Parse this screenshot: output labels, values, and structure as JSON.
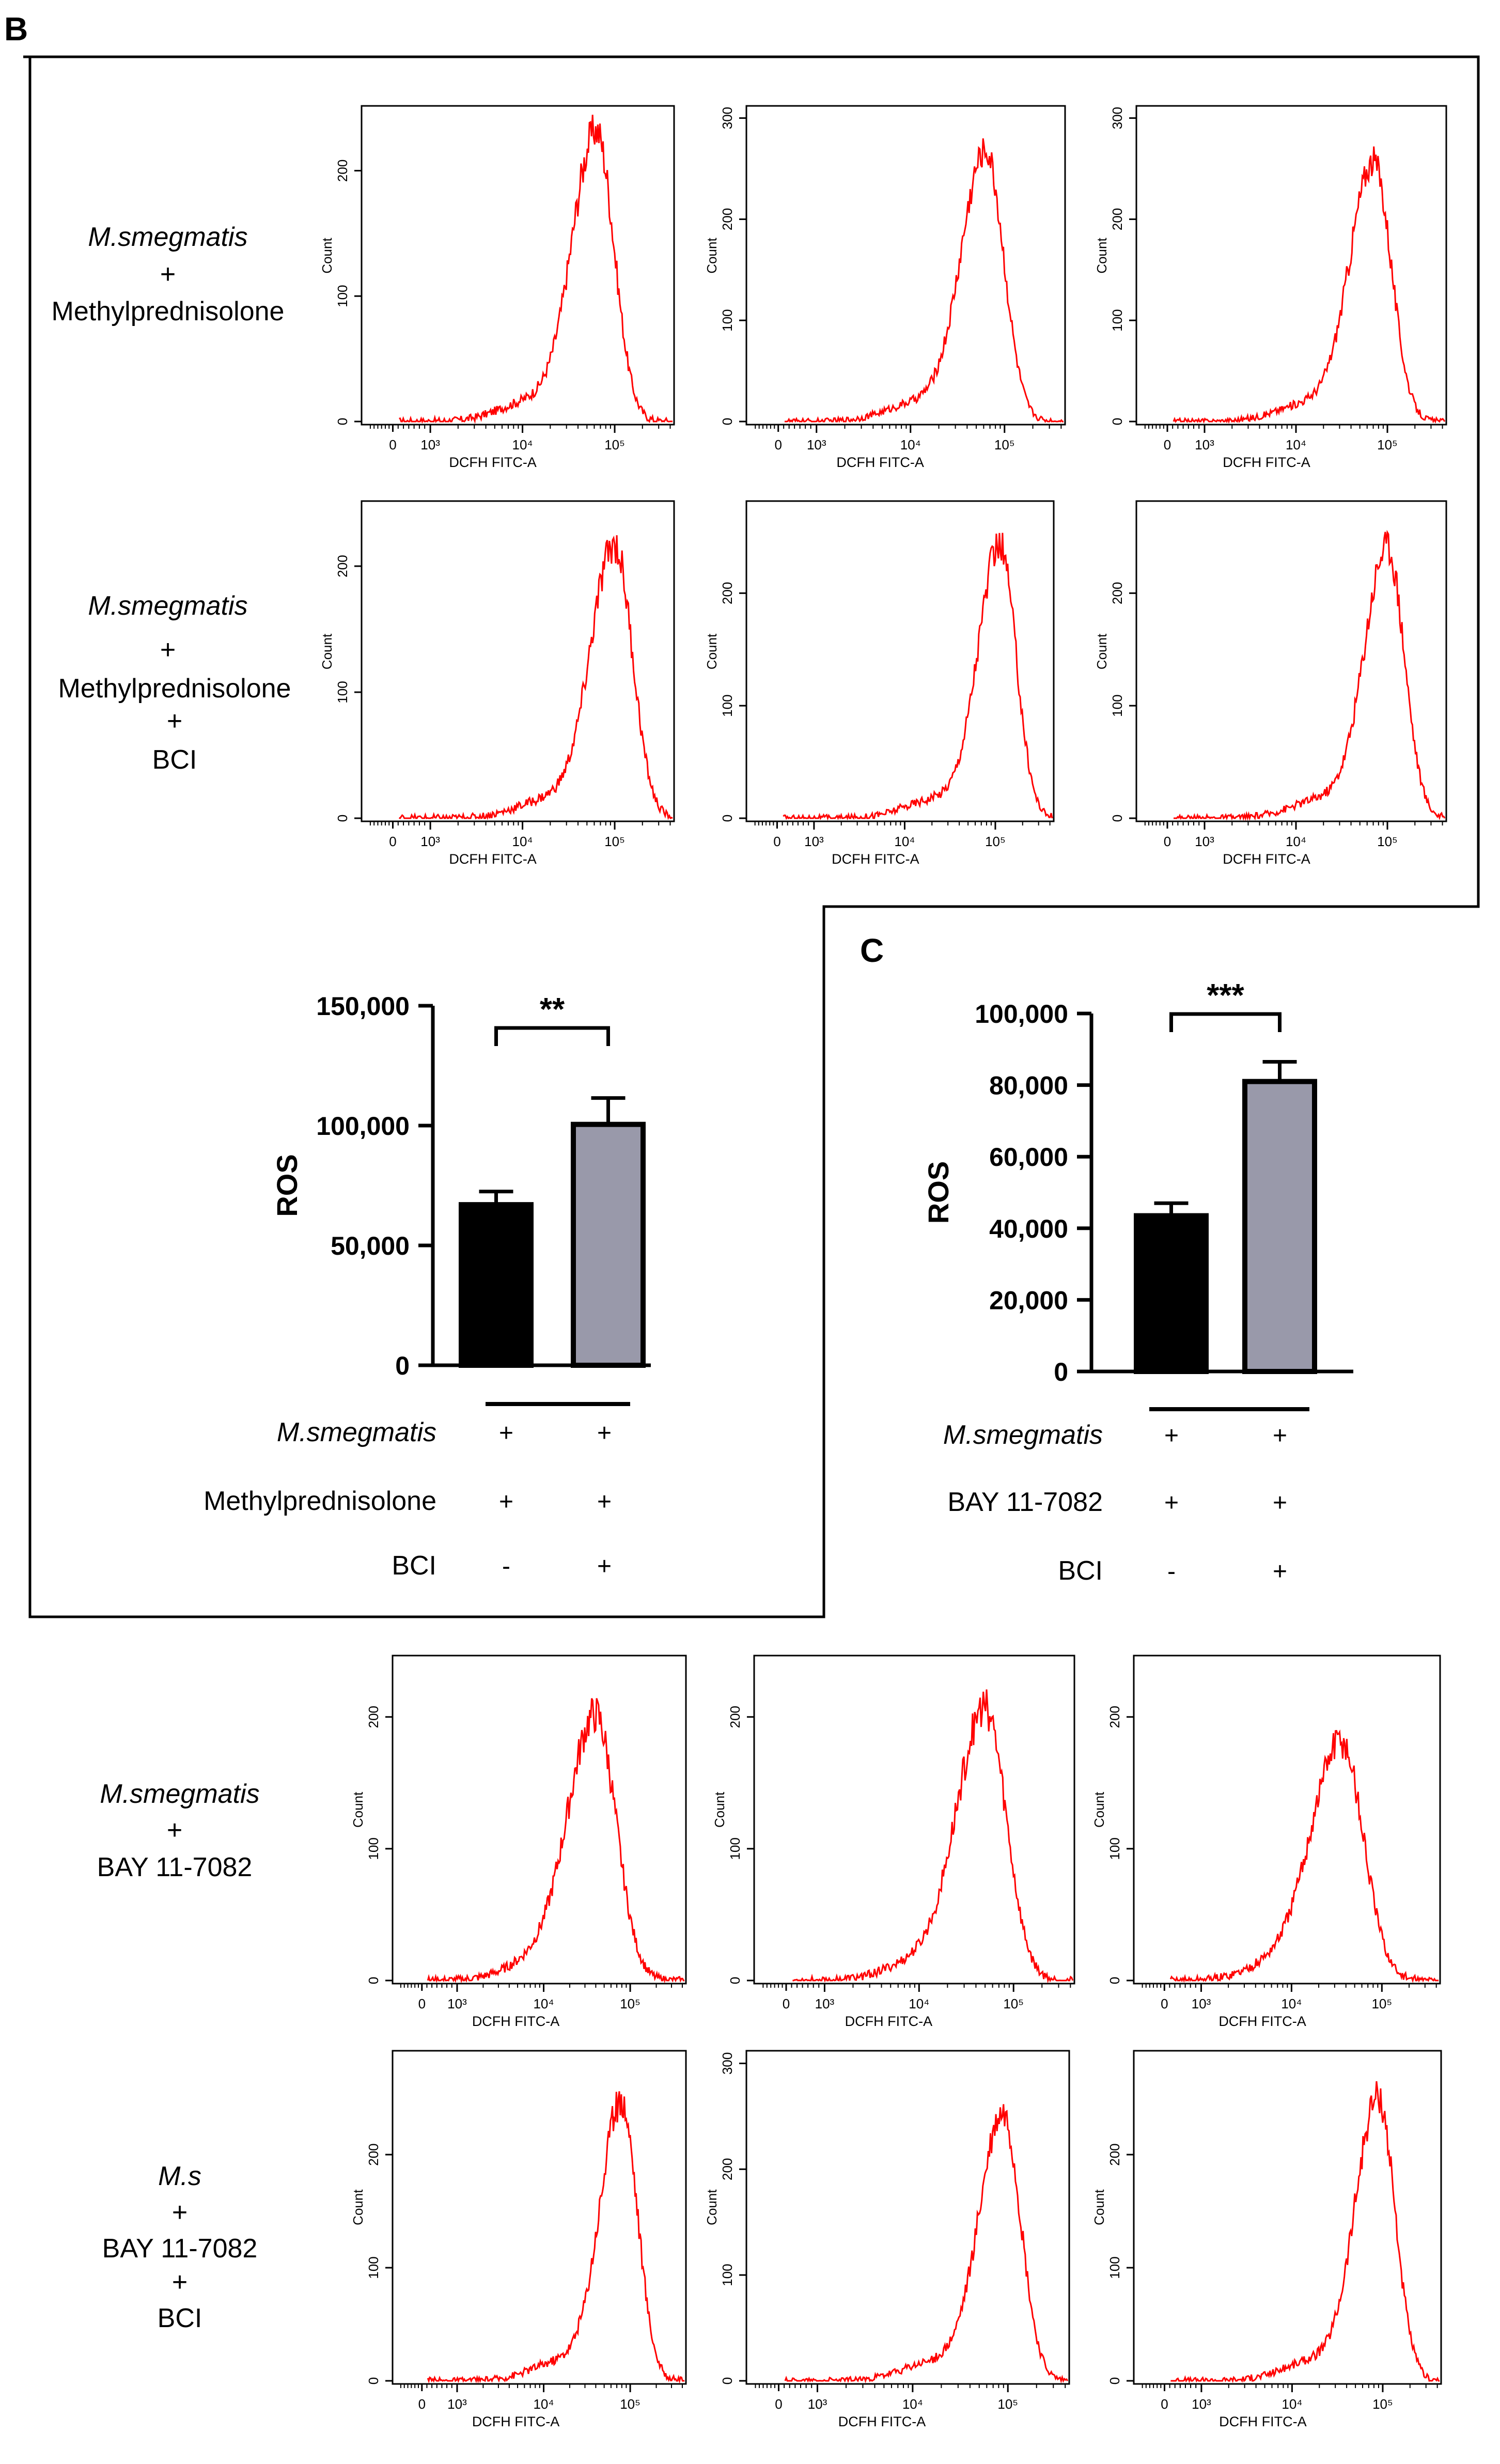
{
  "panels": {
    "B": "B",
    "C": "C"
  },
  "conditions": {
    "b_row1": {
      "line1": "M.smegmatis",
      "line2": "+",
      "line3": "Methylprednisolone"
    },
    "b_row2": {
      "line1": "M.smegmatis",
      "line2": "+",
      "line3": "Methylprednisolone",
      "line4": "+",
      "line5": "BCI"
    },
    "c_row1": {
      "line1": "M.smegmatis",
      "line2": "+",
      "line3": "BAY 11-7082"
    },
    "c_row2": {
      "line1": "M.s",
      "line2": "+",
      "line3": "BAY 11-7082",
      "line4": "+",
      "line5": "BCI"
    }
  },
  "colors": {
    "histogram_line": "#ff0000",
    "bar_control": "#000000",
    "bar_treated": "#9999aa",
    "axis": "#000000"
  },
  "chart_data": [
    {
      "type": "bar",
      "panel": "B",
      "categories": [
        "",
        ""
      ],
      "values": [
        67000,
        100500
      ],
      "errors": [
        5500,
        11000
      ],
      "bar_colors": [
        "#000000",
        "#9999aa"
      ],
      "ylabel": "ROS",
      "ylim": [
        0,
        150000
      ],
      "yticks": [
        "0",
        "50,000",
        "100,000",
        "150,000"
      ],
      "significance": "**",
      "treatment_table": [
        {
          "label": "M.smegmatis",
          "italic": true,
          "values": [
            "+",
            "+"
          ]
        },
        {
          "label": "Methylprednisolone",
          "italic": false,
          "values": [
            "+",
            "+"
          ]
        },
        {
          "label": "BCI",
          "italic": false,
          "values": [
            "-",
            "+"
          ]
        }
      ]
    },
    {
      "type": "bar",
      "panel": "C",
      "categories": [
        "",
        ""
      ],
      "values": [
        43500,
        81000
      ],
      "errors": [
        3500,
        5500
      ],
      "bar_colors": [
        "#000000",
        "#9999aa"
      ],
      "ylabel": "ROS",
      "ylim": [
        0,
        100000
      ],
      "yticks": [
        "0",
        "20,000",
        "40,000",
        "60,000",
        "80,000",
        "100,000"
      ],
      "significance": "***",
      "treatment_table": [
        {
          "label": "M.smegmatis",
          "italic": true,
          "values": [
            "+",
            "+"
          ]
        },
        {
          "label": "BAY 11-7082",
          "italic": false,
          "values": [
            "+",
            "+"
          ]
        },
        {
          "label": "BCI",
          "italic": false,
          "values": [
            "-",
            "+"
          ]
        }
      ]
    },
    {
      "type": "line",
      "subtype": "flow-cytometry-histograms",
      "xlabel": "DCFH FITC-A",
      "ylabel": "Count",
      "x_scale": "biexponential",
      "x_ticks": [
        "0",
        "10³",
        "10⁴",
        "10⁵"
      ],
      "histograms": [
        {
          "group": "b_row1",
          "replicate": 1,
          "peak_log10": 4.8,
          "peak_count": 230,
          "width": 0.26,
          "ymax": 250,
          "yticks": [
            0,
            100,
            200
          ]
        },
        {
          "group": "b_row1",
          "replicate": 2,
          "peak_log10": 4.8,
          "peak_count": 265,
          "width": 0.26,
          "ymax": 310,
          "yticks": [
            0,
            100,
            200,
            300
          ]
        },
        {
          "group": "b_row1",
          "replicate": 3,
          "peak_log10": 4.85,
          "peak_count": 255,
          "width": 0.26,
          "ymax": 310,
          "yticks": [
            0,
            100,
            200,
            300
          ]
        },
        {
          "group": "b_row2",
          "replicate": 1,
          "peak_log10": 5.0,
          "peak_count": 215,
          "width": 0.26,
          "ymax": 250,
          "yticks": [
            0,
            100,
            200
          ]
        },
        {
          "group": "b_row2",
          "replicate": 2,
          "peak_log10": 5.05,
          "peak_count": 240,
          "width": 0.24,
          "ymax": 280,
          "yticks": [
            0,
            100,
            200
          ]
        },
        {
          "group": "b_row2",
          "replicate": 3,
          "peak_log10": 5.0,
          "peak_count": 240,
          "width": 0.25,
          "ymax": 280,
          "yticks": [
            0,
            100,
            200
          ]
        },
        {
          "group": "c_row1",
          "replicate": 1,
          "peak_log10": 4.6,
          "peak_count": 200,
          "width": 0.32,
          "ymax": 245,
          "yticks": [
            0,
            100,
            200
          ]
        },
        {
          "group": "c_row1",
          "replicate": 2,
          "peak_log10": 4.7,
          "peak_count": 205,
          "width": 0.3,
          "ymax": 245,
          "yticks": [
            0,
            100,
            200
          ]
        },
        {
          "group": "c_row1",
          "replicate": 3,
          "peak_log10": 4.55,
          "peak_count": 180,
          "width": 0.33,
          "ymax": 245,
          "yticks": [
            0,
            100,
            200
          ]
        },
        {
          "group": "c_row2",
          "replicate": 1,
          "peak_log10": 4.9,
          "peak_count": 245,
          "width": 0.25,
          "ymax": 290,
          "yticks": [
            0,
            100,
            200
          ]
        },
        {
          "group": "c_row2",
          "replicate": 2,
          "peak_log10": 4.95,
          "peak_count": 250,
          "width": 0.25,
          "ymax": 310,
          "yticks": [
            0,
            100,
            200,
            300
          ]
        },
        {
          "group": "c_row2",
          "replicate": 3,
          "peak_log10": 4.95,
          "peak_count": 250,
          "width": 0.25,
          "ymax": 290,
          "yticks": [
            0,
            100,
            200
          ]
        }
      ]
    }
  ]
}
